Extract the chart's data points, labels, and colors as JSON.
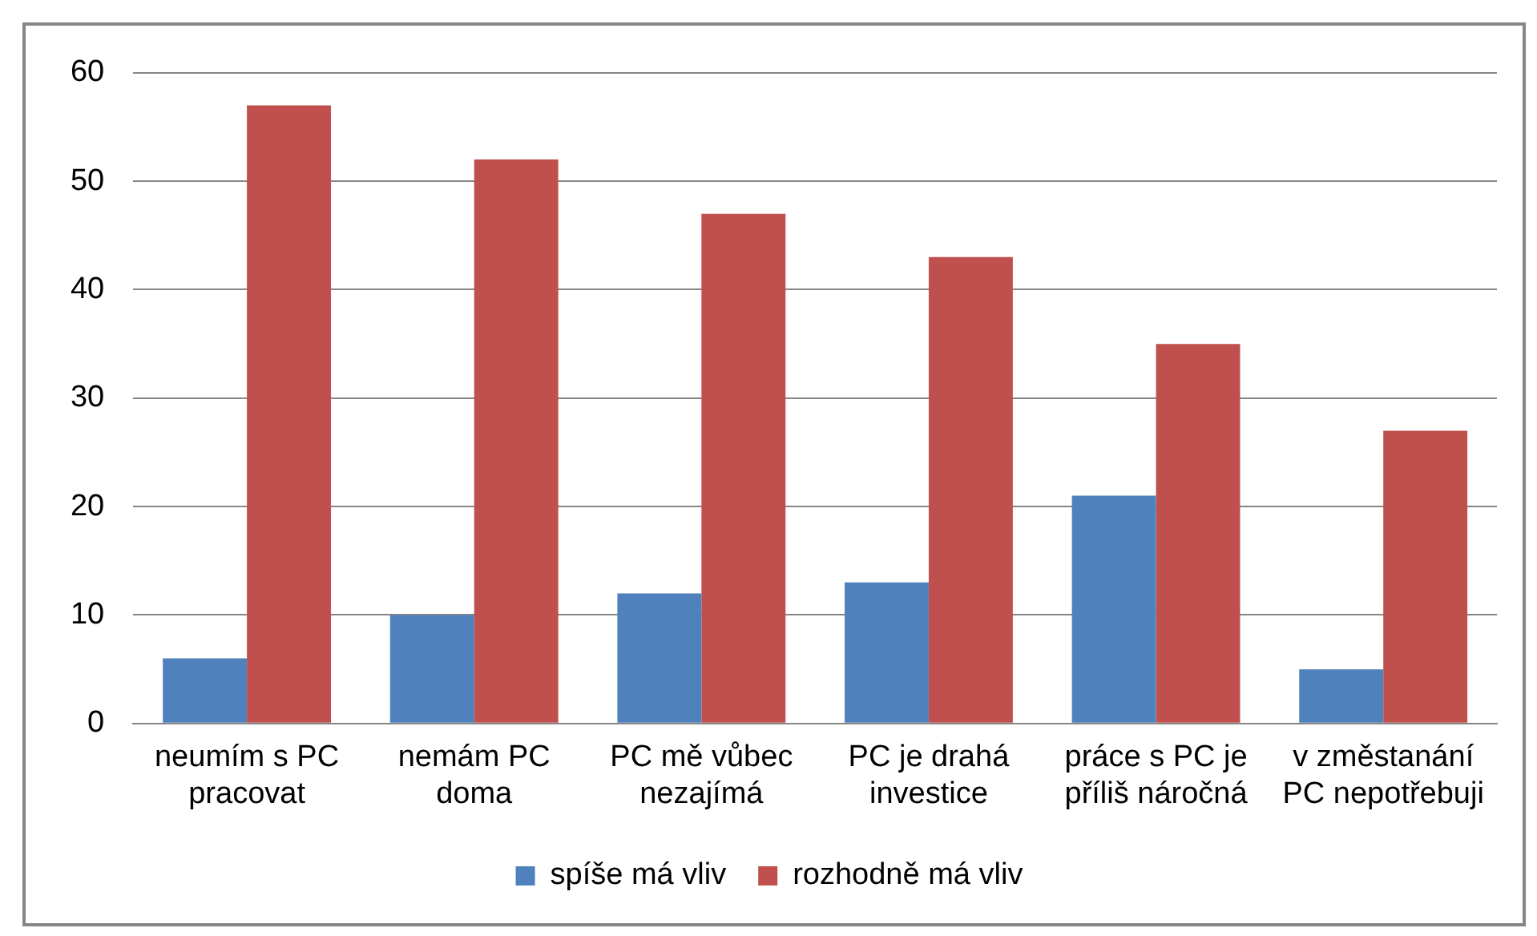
{
  "chart_data": {
    "type": "bar",
    "categories": [
      "neumím s PC pracovat",
      "nemám PC doma",
      "PC mě vůbec nezajímá",
      "PC je drahá investice",
      "práce s PC je příliš náročná",
      "v změstanání PC nepotřebuji"
    ],
    "series": [
      {
        "name": "spíše má vliv",
        "color": "#4f81bd",
        "values": [
          6,
          10,
          12,
          13,
          21,
          5
        ]
      },
      {
        "name": "rozhodně má vliv",
        "color": "#c0504d",
        "values": [
          57,
          52,
          47,
          43,
          35,
          27
        ]
      }
    ],
    "ylim": [
      0,
      60
    ],
    "yticks": [
      0,
      10,
      20,
      30,
      40,
      50,
      60
    ],
    "grid": "y",
    "legend": "bottom"
  }
}
